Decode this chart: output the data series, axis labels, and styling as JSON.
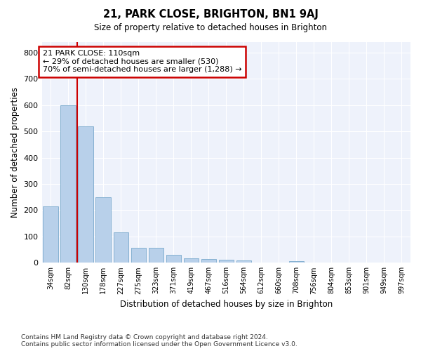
{
  "title": "21, PARK CLOSE, BRIGHTON, BN1 9AJ",
  "subtitle": "Size of property relative to detached houses in Brighton",
  "xlabel": "Distribution of detached houses by size in Brighton",
  "ylabel": "Number of detached properties",
  "categories": [
    "34sqm",
    "82sqm",
    "130sqm",
    "178sqm",
    "227sqm",
    "275sqm",
    "323sqm",
    "371sqm",
    "419sqm",
    "467sqm",
    "516sqm",
    "564sqm",
    "612sqm",
    "660sqm",
    "708sqm",
    "756sqm",
    "804sqm",
    "853sqm",
    "901sqm",
    "949sqm",
    "997sqm"
  ],
  "values": [
    215,
    600,
    520,
    250,
    115,
    57,
    57,
    30,
    18,
    15,
    12,
    8,
    0,
    0,
    7,
    0,
    0,
    0,
    0,
    0,
    0
  ],
  "bar_color": "#b8d0ea",
  "bar_edge_color": "#7aaacc",
  "property_line_x": 1.5,
  "annotation_text": "21 PARK CLOSE: 110sqm\n← 29% of detached houses are smaller (530)\n70% of semi-detached houses are larger (1,288) →",
  "annotation_box_color": "#ffffff",
  "annotation_box_edge_color": "#cc0000",
  "vline_color": "#cc0000",
  "ylim": [
    0,
    840
  ],
  "yticks": [
    0,
    100,
    200,
    300,
    400,
    500,
    600,
    700,
    800
  ],
  "background_color": "#eef2fb",
  "grid_color": "#ffffff",
  "footnote": "Contains HM Land Registry data © Crown copyright and database right 2024.\nContains public sector information licensed under the Open Government Licence v3.0."
}
